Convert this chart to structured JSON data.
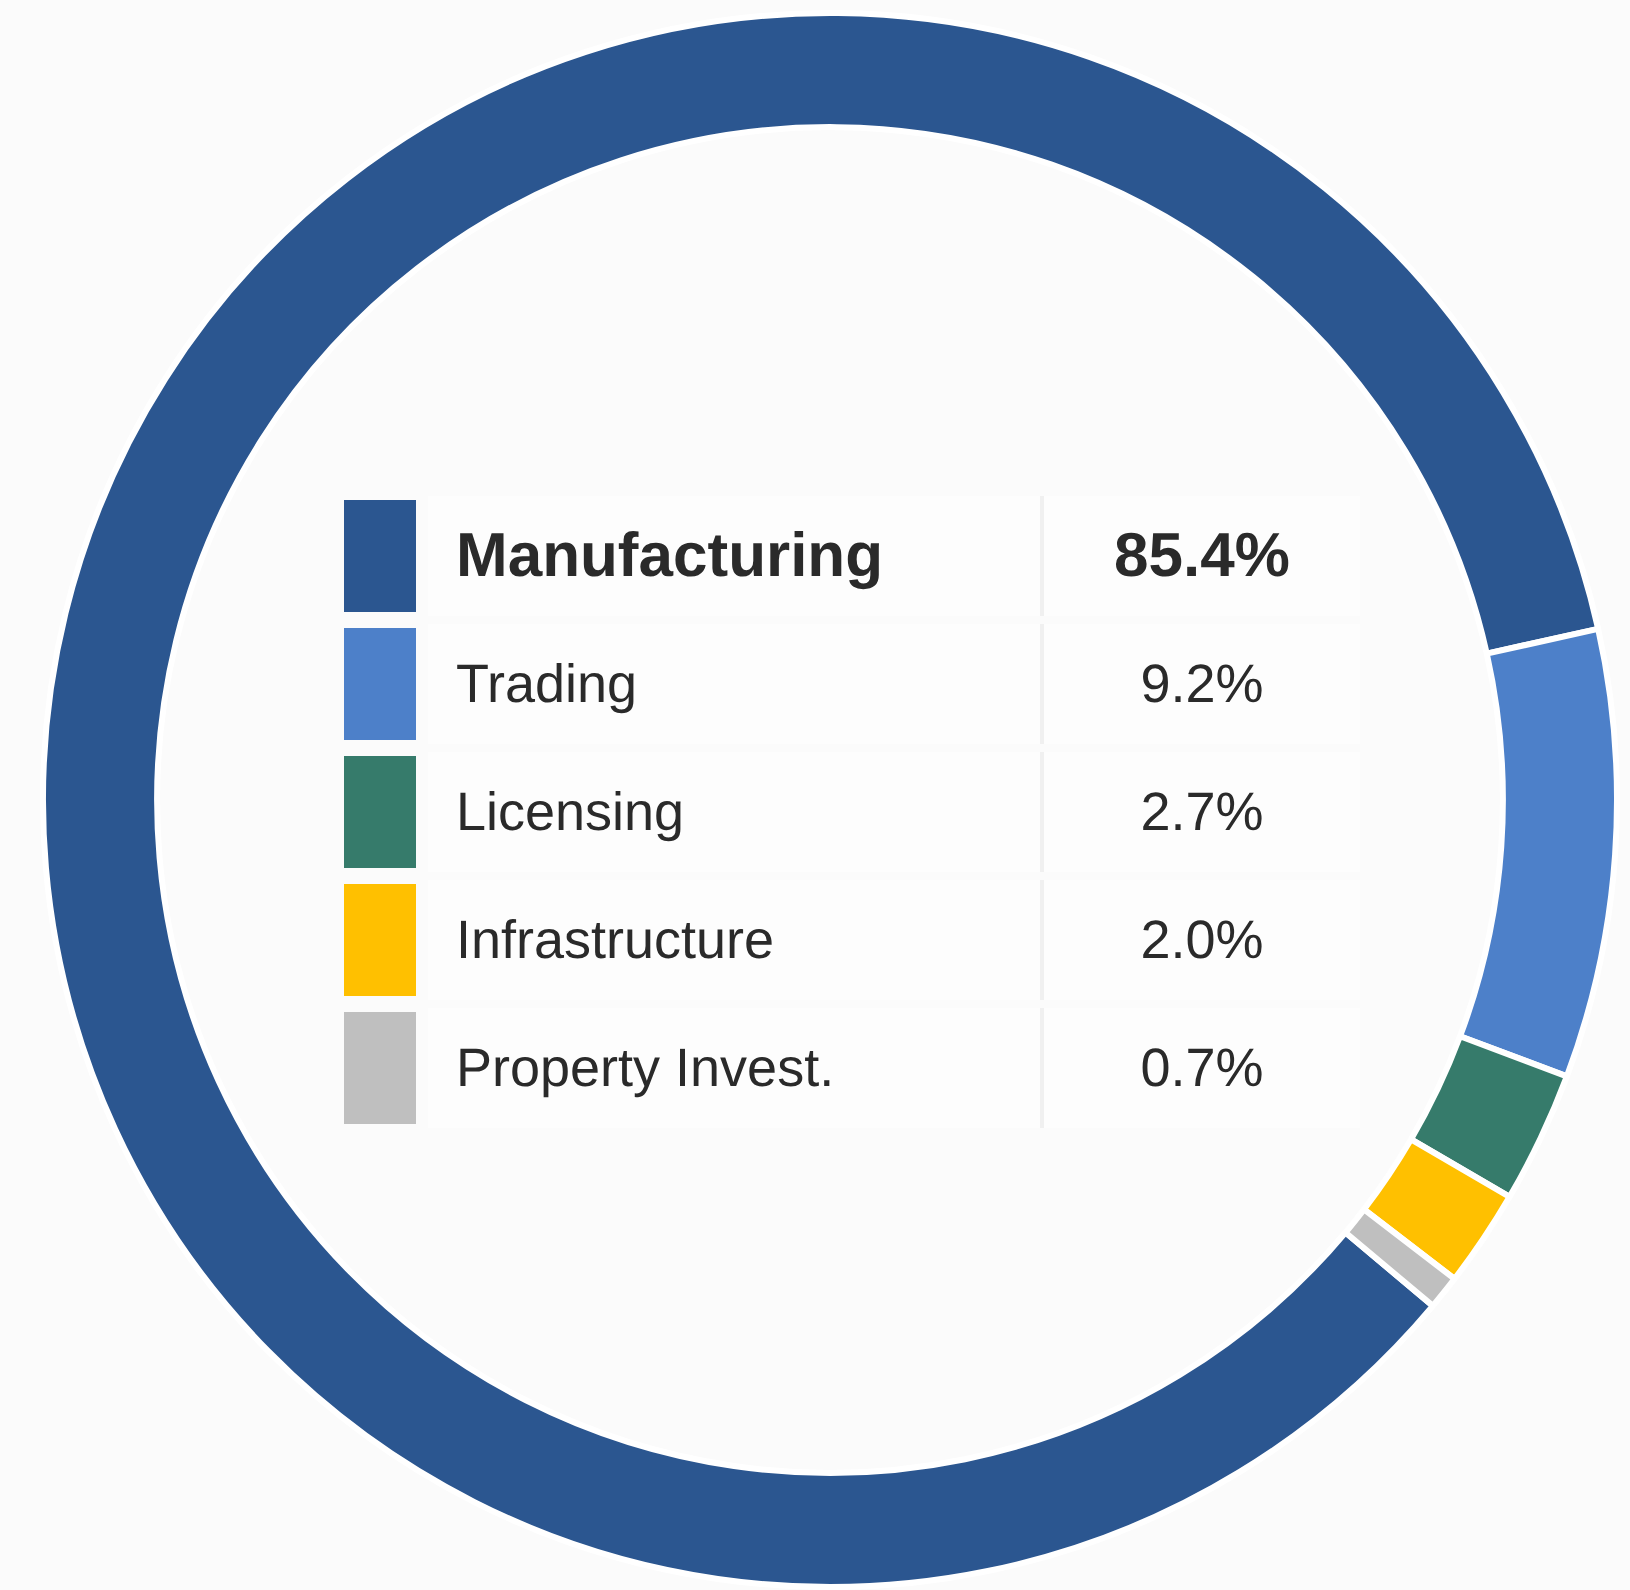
{
  "chart_data": {
    "type": "donut",
    "categories": [
      "Manufacturing",
      "Trading",
      "Licensing",
      "Infrastructure",
      "Property Invest."
    ],
    "values": [
      85.4,
      9.2,
      2.7,
      2.0,
      0.7
    ],
    "value_labels": [
      "85.4%",
      "9.2%",
      "2.7%",
      "2.0%",
      "0.7%"
    ],
    "colors": [
      "#2b5690",
      "#4d80c9",
      "#367b6b",
      "#ffc000",
      "#bfbfbf"
    ],
    "legend": "center"
  }
}
